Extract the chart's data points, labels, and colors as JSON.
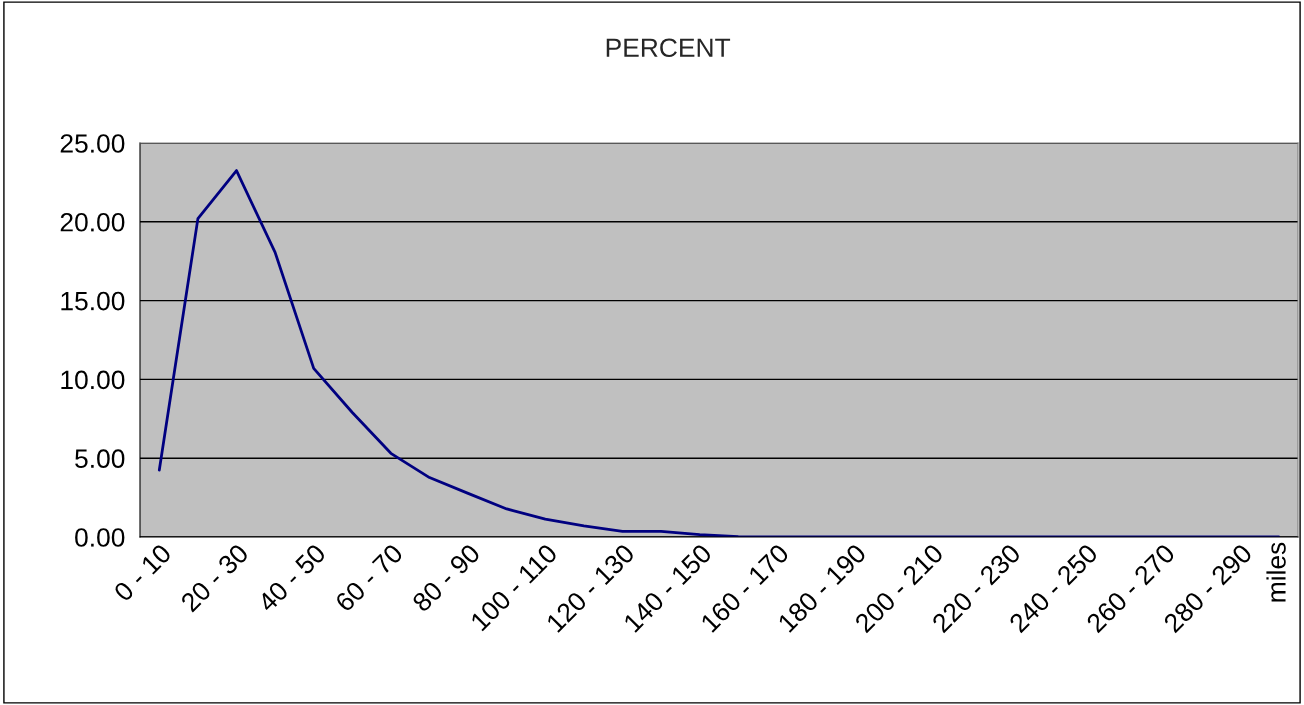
{
  "chart_data": {
    "type": "line",
    "title": "PERCENT",
    "categories": [
      "0 - 10",
      null,
      "20 - 30",
      null,
      "40 - 50",
      null,
      "60 - 70",
      null,
      "80 - 90",
      null,
      "100 - 110",
      null,
      "120 - 130",
      null,
      "140 - 150",
      null,
      "160 - 170",
      null,
      "180 - 190",
      null,
      "200 - 210",
      null,
      "220 - 230",
      null,
      "240 - 250",
      null,
      "260 - 270",
      null,
      "280 - 290",
      "miles"
    ],
    "series": [
      {
        "color": "#000080",
        "values": [
          4.25,
          20.2,
          23.25,
          18.06,
          10.7,
          7.9,
          5.31,
          3.77,
          2.77,
          1.78,
          1.14,
          0.7,
          0.35,
          0.35,
          0.15,
          0.02,
          0,
          0,
          0,
          0,
          0,
          0,
          0,
          0,
          0,
          0,
          0,
          0,
          0,
          0
        ]
      }
    ],
    "ylim": [
      0,
      25
    ],
    "yticks": [
      {
        "value": 0,
        "label": "0.00"
      },
      {
        "value": 5,
        "label": "5.00"
      },
      {
        "value": 10,
        "label": "10.00"
      },
      {
        "value": 15,
        "label": "15.00"
      },
      {
        "value": 20,
        "label": "20.00"
      },
      {
        "value": 25,
        "label": "25.00"
      }
    ],
    "grid": "y",
    "legend": false,
    "marker": "none",
    "line_style": "solid"
  }
}
